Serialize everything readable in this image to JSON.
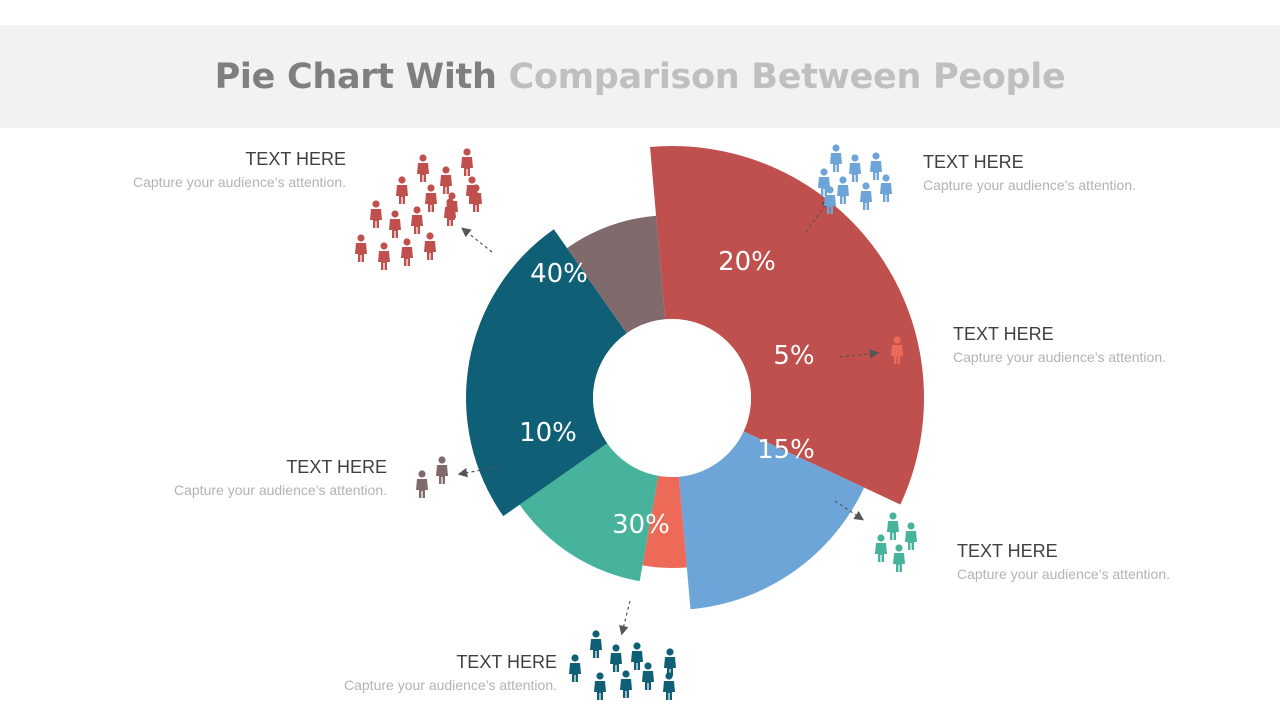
{
  "header": {
    "title_part1": "Pie Chart With",
    "title_part2": "Comparison Between People"
  },
  "colors": {
    "red": "#c0504d",
    "blue": "#6ea5d9",
    "coral": "#ec6a57",
    "teal": "#47b39c",
    "navy": "#0f6076",
    "taupe": "#806a6b"
  },
  "chart_data": {
    "type": "pie",
    "variant": "donut-exploded-radius",
    "title": "Pie Chart With Comparison Between People",
    "slices": [
      {
        "label": "40%",
        "value": 40,
        "color": "#c0504d",
        "caption_head": "TEXT HERE",
        "caption_sub": "Capture your audience’s attention.",
        "people": 16
      },
      {
        "label": "20%",
        "value": 20,
        "color": "#6ea5d9",
        "caption_head": "TEXT HERE",
        "caption_sub": "Capture your audience’s attention.",
        "people": 8
      },
      {
        "label": "5%",
        "value": 5,
        "color": "#ec6a57",
        "caption_head": "TEXT HERE",
        "caption_sub": "Capture your audience’s attention.",
        "people": 1
      },
      {
        "label": "15%",
        "value": 15,
        "color": "#47b39c",
        "caption_head": "TEXT HERE",
        "caption_sub": "Capture your audience’s attention.",
        "people": 4
      },
      {
        "label": "30%",
        "value": 30,
        "color": "#0f6076",
        "caption_head": "TEXT HERE",
        "caption_sub": "Capture your audience’s attention.",
        "people": 9
      },
      {
        "label": "10%",
        "value": 10,
        "color": "#806a6b",
        "caption_head": "TEXT HERE",
        "caption_sub": "Capture your audience’s attention.",
        "people": 2
      }
    ]
  }
}
